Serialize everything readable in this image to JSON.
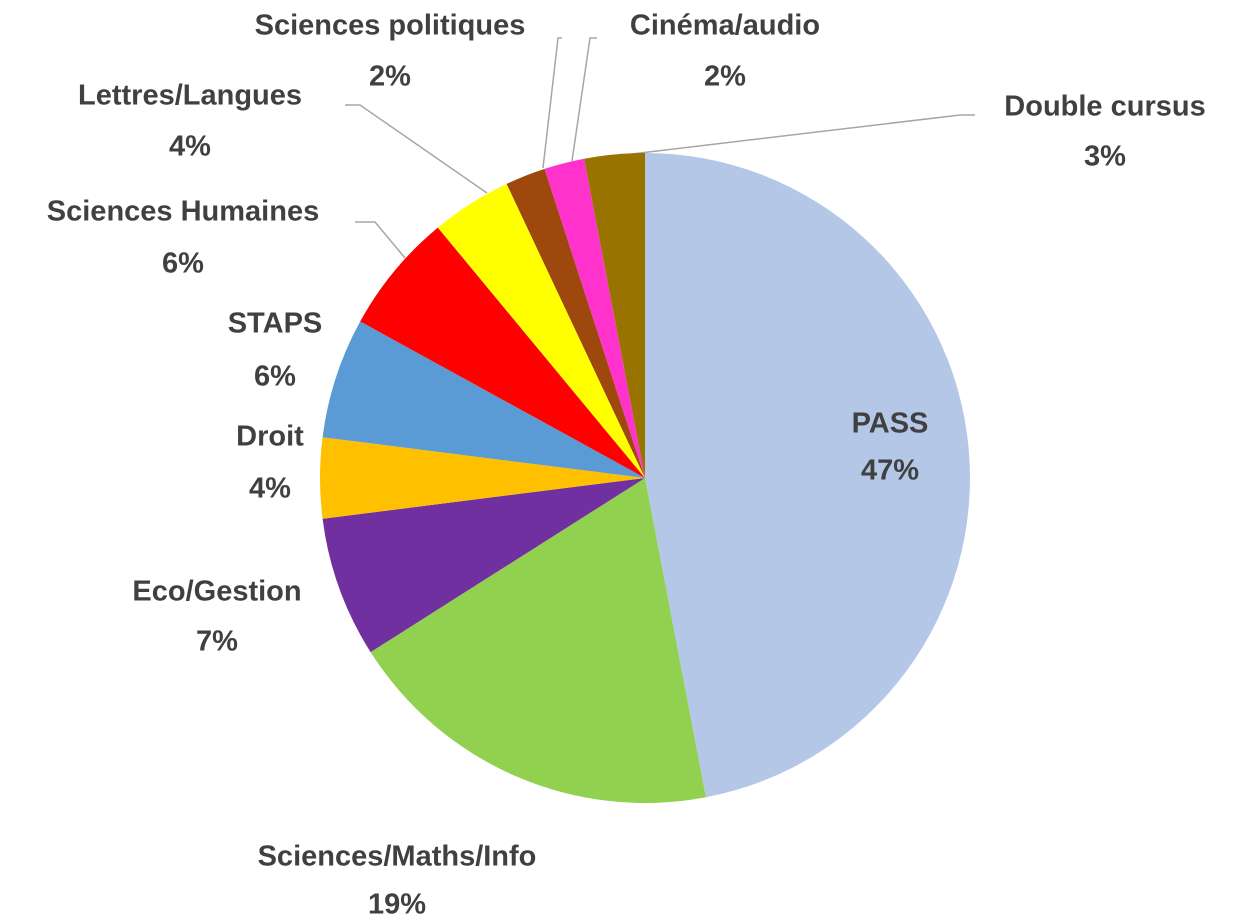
{
  "chart_data": {
    "type": "pie",
    "categories": [
      "PASS",
      "Sciences/Maths/Info",
      "Eco/Gestion",
      "Droit",
      "STAPS",
      "Sciences Humaines",
      "Lettres/Langues",
      "Sciences politiques",
      "Cinéma/audio",
      "Double cursus"
    ],
    "values": [
      47,
      19,
      7,
      4,
      6,
      6,
      4,
      2,
      2,
      3
    ],
    "value_labels": [
      "47%",
      "19%",
      "7%",
      "4%",
      "6%",
      "6%",
      "4%",
      "2%",
      "2%",
      "3%"
    ],
    "colors": [
      "#b4c7e7",
      "#92d050",
      "#7030a0",
      "#ffc000",
      "#5b9bd5",
      "#ff0000",
      "#ffff00",
      "#9e480e",
      "#ff33cc",
      "#997300"
    ]
  }
}
